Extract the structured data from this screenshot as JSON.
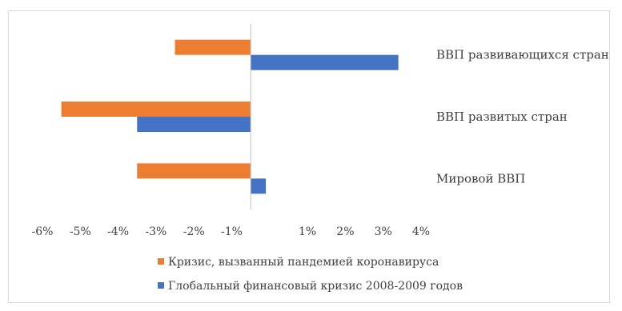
{
  "chart_data": {
    "type": "bar",
    "orientation": "horizontal",
    "categories": [
      "Мировой ВВП",
      "ВВП развитых стран",
      "ВВП развивающихся стран"
    ],
    "series": [
      {
        "name": "Кризис, вызванный пандемией коронавируса",
        "values": [
          -3.5,
          -5.5,
          -2.5
        ],
        "color": "#ed7d31"
      },
      {
        "name": "Глобальный финансовый кризис 2008-2009 годов",
        "values": [
          -0.1,
          -3.5,
          3.4
        ],
        "color": "#4472c4"
      }
    ],
    "xlim": [
      -6,
      4
    ],
    "x_ticks": [
      "-6%",
      "-5%",
      "-4%",
      "-3%",
      "-2%",
      "-1%",
      "1%",
      "2%",
      "3%",
      "4%"
    ],
    "title": "",
    "xlabel": "",
    "ylabel": "",
    "grid": false,
    "legend_position": "bottom",
    "category_labels_position": "right"
  }
}
